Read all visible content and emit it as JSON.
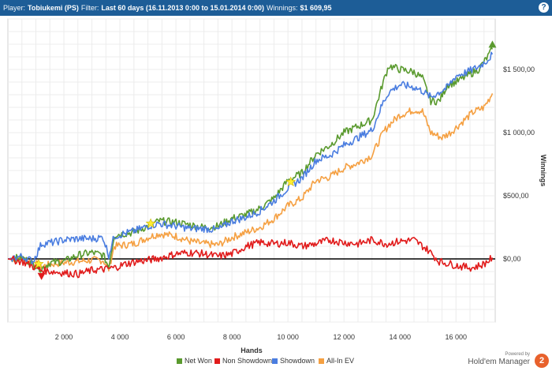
{
  "header": {
    "player_label": "Player:",
    "player_value": "Tobiukemi (PS)",
    "filter_label": "Filter:",
    "filter_value": "Last 60 days (16.11.2013 0:00 to 15.01.2014 0:00)",
    "winnings_label": "Winnings:",
    "winnings_value": "$1 609,95",
    "help_icon": "?"
  },
  "brand": {
    "powered_by": "Powered by",
    "name": "Hold'em Manager",
    "badge": "2"
  },
  "chart_data": {
    "type": "line",
    "xlabel": "Hands",
    "ylabel": "Winnings",
    "xlim": [
      0,
      17400
    ],
    "ylim": [
      -500,
      1900
    ],
    "x_ticks": [
      2000,
      4000,
      6000,
      8000,
      10000,
      12000,
      14000,
      16000
    ],
    "x_tick_labels": [
      "2 000",
      "4 000",
      "6 000",
      "8 000",
      "10 000",
      "12 000",
      "14 000",
      "16 000"
    ],
    "y_ticks": [
      0,
      500,
      1000,
      1500
    ],
    "y_tick_labels": [
      "$0,00",
      "$500,00",
      "$1 000,00",
      "$1 500,00"
    ],
    "grid": true,
    "legend_position": "bottom",
    "series": [
      {
        "name": "Net Won",
        "color": "#5a9a2e",
        "points": [
          [
            0,
            0
          ],
          [
            500,
            10
          ],
          [
            900,
            -40
          ],
          [
            1200,
            -80
          ],
          [
            1500,
            -30
          ],
          [
            2000,
            -20
          ],
          [
            2500,
            30
          ],
          [
            3000,
            50
          ],
          [
            3400,
            30
          ],
          [
            3600,
            -60
          ],
          [
            3800,
            190
          ],
          [
            4500,
            210
          ],
          [
            5000,
            260
          ],
          [
            5400,
            300
          ],
          [
            6000,
            290
          ],
          [
            6500,
            270
          ],
          [
            7000,
            250
          ],
          [
            7500,
            260
          ],
          [
            8000,
            320
          ],
          [
            8500,
            350
          ],
          [
            9000,
            400
          ],
          [
            9500,
            480
          ],
          [
            10000,
            620
          ],
          [
            10500,
            680
          ],
          [
            11000,
            830
          ],
          [
            11500,
            900
          ],
          [
            12000,
            1000
          ],
          [
            12500,
            1050
          ],
          [
            13000,
            1100
          ],
          [
            13400,
            1400
          ],
          [
            13600,
            1530
          ],
          [
            14000,
            1500
          ],
          [
            14500,
            1480
          ],
          [
            14800,
            1430
          ],
          [
            15100,
            1250
          ],
          [
            15400,
            1250
          ],
          [
            15700,
            1380
          ],
          [
            16000,
            1400
          ],
          [
            16400,
            1450
          ],
          [
            16800,
            1500
          ],
          [
            17100,
            1590
          ],
          [
            17300,
            1660
          ]
        ]
      },
      {
        "name": "Non Showdown",
        "color": "#e11b1b",
        "points": [
          [
            0,
            0
          ],
          [
            500,
            -20
          ],
          [
            900,
            -60
          ],
          [
            1200,
            -90
          ],
          [
            1600,
            -100
          ],
          [
            2000,
            -110
          ],
          [
            2500,
            -120
          ],
          [
            3000,
            -90
          ],
          [
            3500,
            -80
          ],
          [
            3800,
            -70
          ],
          [
            4200,
            -40
          ],
          [
            4600,
            -20
          ],
          [
            5000,
            -10
          ],
          [
            5500,
            10
          ],
          [
            6000,
            40
          ],
          [
            6500,
            50
          ],
          [
            7000,
            40
          ],
          [
            7500,
            20
          ],
          [
            8000,
            40
          ],
          [
            8500,
            100
          ],
          [
            9000,
            130
          ],
          [
            9500,
            120
          ],
          [
            10000,
            130
          ],
          [
            10500,
            100
          ],
          [
            11000,
            120
          ],
          [
            11500,
            150
          ],
          [
            12000,
            130
          ],
          [
            12500,
            120
          ],
          [
            13000,
            150
          ],
          [
            13500,
            120
          ],
          [
            14000,
            140
          ],
          [
            14500,
            150
          ],
          [
            15000,
            70
          ],
          [
            15400,
            -20
          ],
          [
            15800,
            -40
          ],
          [
            16200,
            -60
          ],
          [
            16600,
            -70
          ],
          [
            17000,
            -40
          ],
          [
            17300,
            10
          ]
        ]
      },
      {
        "name": "Showdown",
        "color": "#4a7de0",
        "points": [
          [
            0,
            0
          ],
          [
            500,
            20
          ],
          [
            900,
            -20
          ],
          [
            1200,
            120
          ],
          [
            1600,
            130
          ],
          [
            2000,
            150
          ],
          [
            2500,
            160
          ],
          [
            3000,
            160
          ],
          [
            3400,
            170
          ],
          [
            3600,
            30
          ],
          [
            3800,
            180
          ],
          [
            4500,
            220
          ],
          [
            5000,
            260
          ],
          [
            5400,
            280
          ],
          [
            6000,
            260
          ],
          [
            6500,
            240
          ],
          [
            7000,
            240
          ],
          [
            7500,
            230
          ],
          [
            8000,
            300
          ],
          [
            8500,
            330
          ],
          [
            9000,
            380
          ],
          [
            9500,
            460
          ],
          [
            10000,
            560
          ],
          [
            10500,
            640
          ],
          [
            11000,
            780
          ],
          [
            11500,
            820
          ],
          [
            12000,
            900
          ],
          [
            12500,
            960
          ],
          [
            13000,
            1020
          ],
          [
            13400,
            1240
          ],
          [
            13600,
            1320
          ],
          [
            14000,
            1380
          ],
          [
            14500,
            1360
          ],
          [
            14800,
            1330
          ],
          [
            15100,
            1280
          ],
          [
            15400,
            1320
          ],
          [
            15700,
            1360
          ],
          [
            16000,
            1450
          ],
          [
            16400,
            1480
          ],
          [
            16800,
            1520
          ],
          [
            17100,
            1570
          ],
          [
            17300,
            1620
          ]
        ]
      },
      {
        "name": "All-In EV",
        "color": "#f5a042",
        "points": [
          [
            0,
            0
          ],
          [
            500,
            0
          ],
          [
            900,
            -30
          ],
          [
            1200,
            -60
          ],
          [
            1600,
            -40
          ],
          [
            2000,
            -30
          ],
          [
            2500,
            -20
          ],
          [
            3000,
            -10
          ],
          [
            3400,
            -10
          ],
          [
            3600,
            -80
          ],
          [
            3800,
            100
          ],
          [
            4500,
            120
          ],
          [
            5000,
            170
          ],
          [
            5400,
            200
          ],
          [
            6000,
            180
          ],
          [
            6500,
            140
          ],
          [
            7000,
            120
          ],
          [
            7500,
            110
          ],
          [
            8000,
            170
          ],
          [
            8500,
            210
          ],
          [
            9000,
            250
          ],
          [
            9500,
            320
          ],
          [
            10000,
            420
          ],
          [
            10500,
            480
          ],
          [
            11000,
            620
          ],
          [
            11500,
            650
          ],
          [
            12000,
            720
          ],
          [
            12500,
            760
          ],
          [
            13000,
            820
          ],
          [
            13400,
            1000
          ],
          [
            13600,
            1060
          ],
          [
            14000,
            1140
          ],
          [
            14500,
            1180
          ],
          [
            14800,
            1170
          ],
          [
            15100,
            1000
          ],
          [
            15500,
            960
          ],
          [
            15800,
            1000
          ],
          [
            16200,
            1080
          ],
          [
            16600,
            1160
          ],
          [
            17000,
            1200
          ],
          [
            17300,
            1310
          ]
        ]
      }
    ],
    "markers": [
      {
        "type": "triangle-down",
        "x": 1200,
        "y": -80,
        "color": "#e11b1b"
      },
      {
        "type": "triangle-up",
        "x": 17300,
        "y": 1660,
        "color": "#5a9a2e"
      },
      {
        "type": "star",
        "x": 1100,
        "y": -40,
        "color": "#ffee33"
      },
      {
        "type": "star",
        "x": 5100,
        "y": 280,
        "color": "#ffee33"
      },
      {
        "type": "star",
        "x": 10100,
        "y": 610,
        "color": "#ffee33"
      }
    ]
  }
}
